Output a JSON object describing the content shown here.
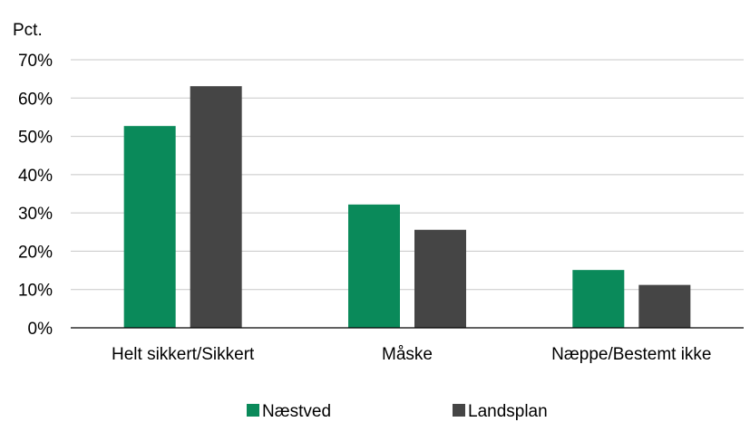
{
  "chart_data": {
    "type": "bar",
    "title": "",
    "ylabel": "Pct.",
    "xlabel": "",
    "categories": [
      "Helt sikkert/Sikkert",
      "Måske",
      "Næppe/Bestemt ikke"
    ],
    "series": [
      {
        "name": "Næstved",
        "values": [
          52.7,
          32.2,
          15.1
        ],
        "color": "#0a8a5a"
      },
      {
        "name": "Landsplan",
        "values": [
          63.1,
          25.6,
          11.2
        ],
        "color": "#454545"
      }
    ],
    "ylim": [
      0,
      70
    ],
    "yticks": [
      0,
      10,
      20,
      30,
      40,
      50,
      60,
      70
    ],
    "ytick_labels": [
      "0%",
      "10%",
      "20%",
      "30%",
      "40%",
      "50%",
      "60%",
      "70%"
    ],
    "grid": true,
    "legend_position": "bottom"
  }
}
